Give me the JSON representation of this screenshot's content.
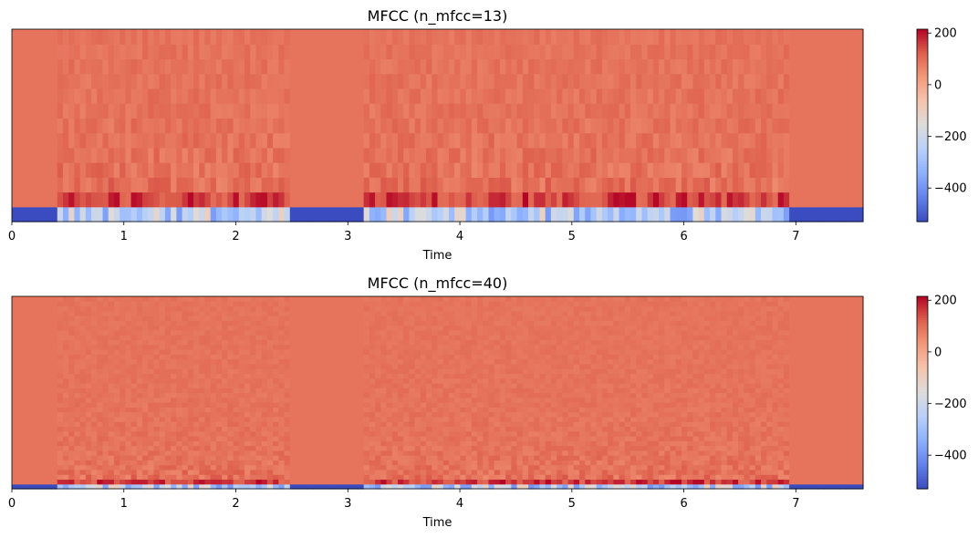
{
  "chart_data": [
    {
      "type": "heatmap",
      "title": "MFCC (n_mfcc=13)",
      "xlabel": "Time",
      "ylabel": "",
      "n_coefficients": 13,
      "xlim": [
        0,
        7.6
      ],
      "x_ticks": [
        0,
        1,
        2,
        3,
        4,
        5,
        6,
        7
      ],
      "x_tick_labels": [
        "0",
        "1",
        "2",
        "3",
        "4",
        "5",
        "6",
        "7"
      ],
      "y_axis_visible": false,
      "colormap": "coolwarm",
      "colorbar": {
        "vmin": -530,
        "vmax": 215,
        "ticks": [
          200,
          0,
          -200,
          -400
        ],
        "tick_labels": [
          "200",
          "0",
          "−200",
          "−400"
        ]
      },
      "silence_segments": [
        [
          0,
          0.42
        ],
        [
          2.47,
          3.14
        ],
        [
          6.95,
          7.6
        ]
      ],
      "silence_values": {
        "c0": -530,
        "other": 90
      },
      "speech_c0_range": [
        -400,
        -100
      ],
      "speech_c1_range": [
        100,
        215
      ]
    },
    {
      "type": "heatmap",
      "title": "MFCC (n_mfcc=40)",
      "xlabel": "Time",
      "ylabel": "",
      "n_coefficients": 40,
      "xlim": [
        0,
        7.6
      ],
      "x_ticks": [
        0,
        1,
        2,
        3,
        4,
        5,
        6,
        7
      ],
      "x_tick_labels": [
        "0",
        "1",
        "2",
        "3",
        "4",
        "5",
        "6",
        "7"
      ],
      "y_axis_visible": false,
      "colormap": "coolwarm",
      "colorbar": {
        "vmin": -530,
        "vmax": 215,
        "ticks": [
          200,
          0,
          -200,
          -400
        ],
        "tick_labels": [
          "200",
          "0",
          "−200",
          "−400"
        ]
      },
      "silence_segments": [
        [
          0,
          0.42
        ],
        [
          2.47,
          3.14
        ],
        [
          6.95,
          7.6
        ]
      ],
      "silence_values": {
        "c0": -530,
        "other": 90
      },
      "speech_c0_range": [
        -400,
        -100
      ],
      "speech_c1_range": [
        100,
        215
      ]
    }
  ]
}
